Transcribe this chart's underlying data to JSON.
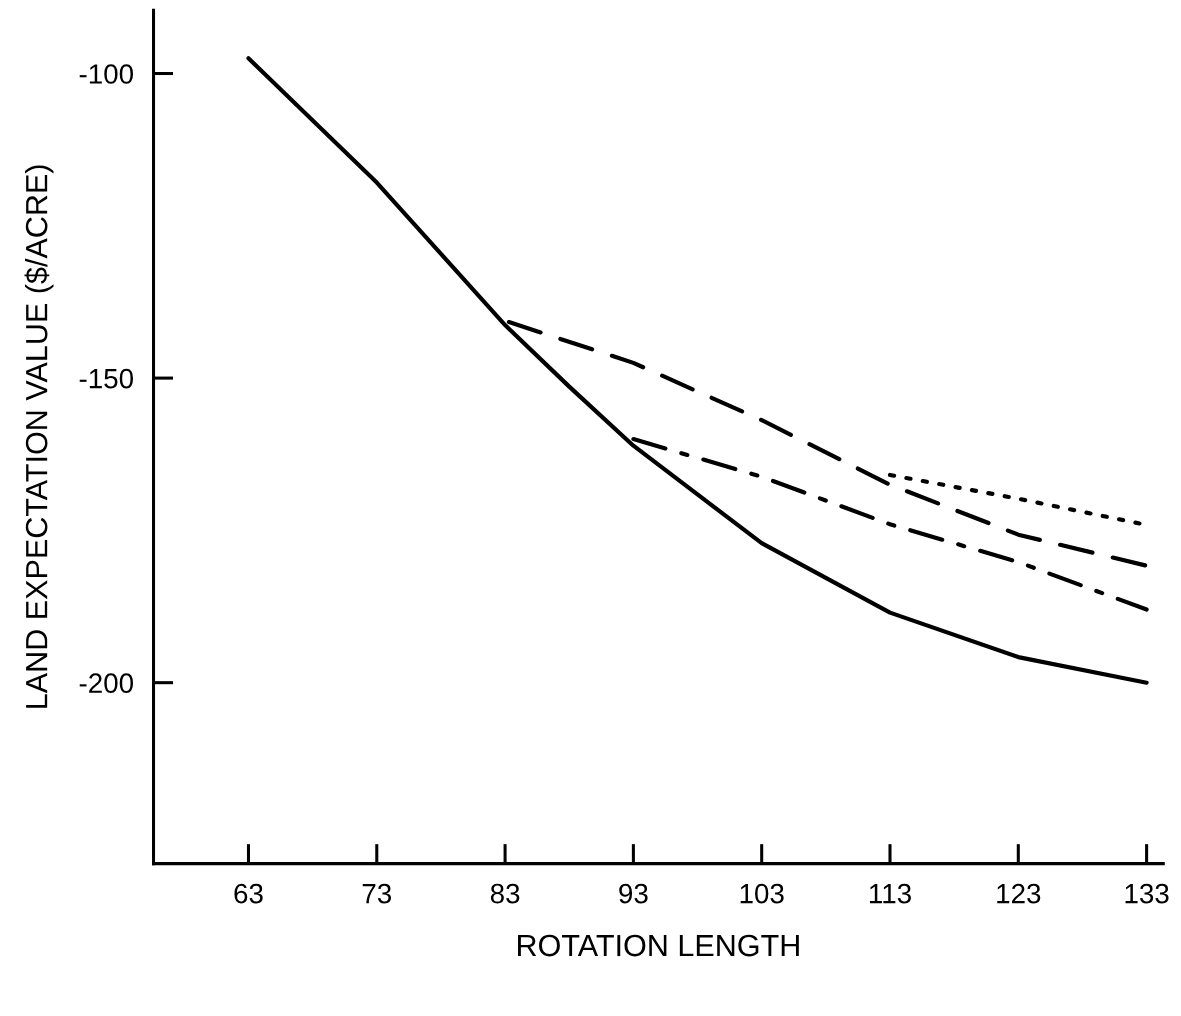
{
  "chart_data": {
    "type": "line",
    "xlabel": "ROTATION LENGTH",
    "ylabel": "LAND EXPECTATION VALUE ($/ACRE)",
    "xlim": [
      55.6,
      134.3
    ],
    "ylim": [
      -229.7,
      -89.6
    ],
    "xticks": [
      63,
      73,
      83,
      93,
      103,
      113,
      123,
      133
    ],
    "yticks": [
      {
        "value": -100,
        "label": "-100"
      },
      {
        "value": -150,
        "label": "-150"
      },
      {
        "value": -200,
        "label": "-200"
      }
    ],
    "grid": false,
    "legend": false,
    "marker": "none",
    "series": [
      {
        "color": "#000000",
        "line_style": "solid",
        "x": [
          63,
          73,
          83,
          88,
          93,
          103,
          113,
          123,
          133
        ],
        "values": [
          -97.5,
          -117.9,
          -141.3,
          -151.4,
          -161.1,
          -177.1,
          -188.5,
          -195.8,
          -200
        ]
      },
      {
        "color": "#000000",
        "line_style": "dashed",
        "x": [
          83.3,
          93,
          103,
          113,
          123,
          133
        ],
        "values": [
          -140.8,
          -147.5,
          -156.9,
          -167.5,
          -175.7,
          -180.8
        ]
      },
      {
        "color": "#000000",
        "line_style": "dashdot",
        "x": [
          93,
          103,
          113,
          123,
          133
        ],
        "values": [
          -160,
          -166.2,
          -174,
          -180.2,
          -188
        ]
      },
      {
        "color": "#000000",
        "line_style": "dotted",
        "x": [
          113,
          123,
          133
        ],
        "values": [
          -165.9,
          -169.8,
          -174.1
        ]
      }
    ]
  }
}
